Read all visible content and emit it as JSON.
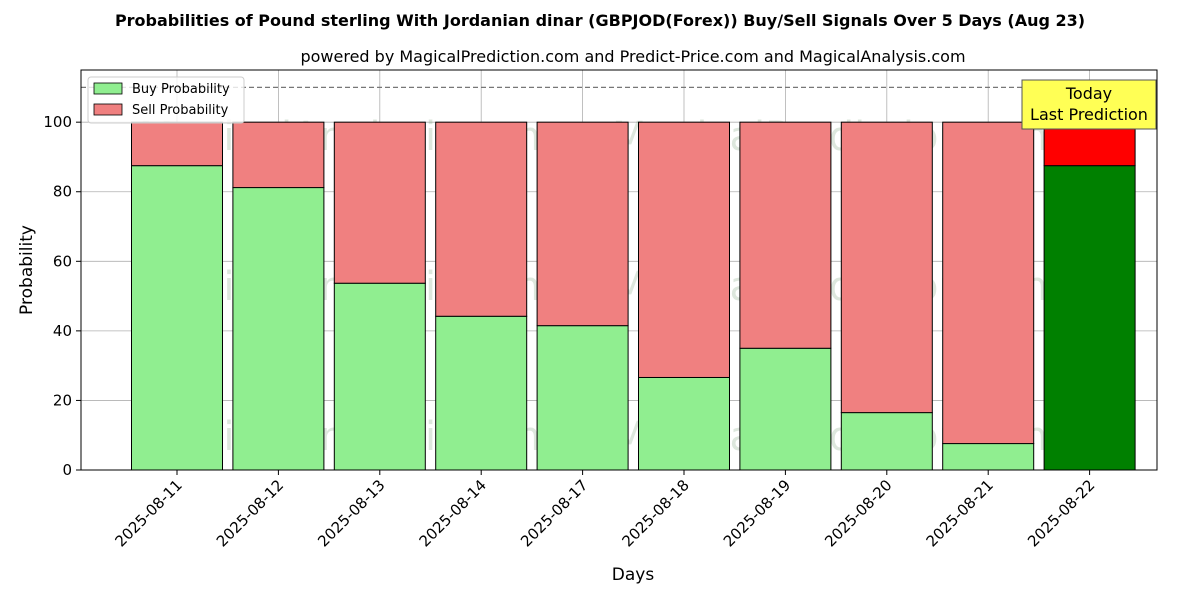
{
  "chart_data": {
    "type": "bar",
    "title": "Probabilities of Pound sterling With Jordanian dinar (GBPJOD(Forex)) Buy/Sell Signals Over 5 Days (Aug 23)",
    "subtitle": "powered by MagicalPrediction.com and Predict-Price.com and MagicalAnalysis.com",
    "xlabel": "Days",
    "ylabel": "Probability",
    "ylim": [
      0,
      115
    ],
    "yticks": [
      0,
      20,
      40,
      60,
      80,
      100
    ],
    "threshold": 110,
    "grid": true,
    "legend_placement": "top-left",
    "categories": [
      "2025-08-11",
      "2025-08-12",
      "2025-08-13",
      "2025-08-14",
      "2025-08-17",
      "2025-08-18",
      "2025-08-19",
      "2025-08-20",
      "2025-08-21",
      "2025-08-22"
    ],
    "series": [
      {
        "name": "Buy Probability",
        "values": [
          87.5,
          81.2,
          53.7,
          44.2,
          41.5,
          26.6,
          35.0,
          16.5,
          7.6,
          87.5
        ]
      },
      {
        "name": "Sell Probability",
        "values": [
          12.5,
          18.8,
          46.3,
          55.8,
          58.5,
          73.4,
          65.0,
          83.5,
          92.4,
          12.5
        ]
      }
    ],
    "colors": {
      "buy": "#90ee90",
      "sell": "#f08080",
      "buy_highlight": "#008000",
      "sell_highlight": "#ff0000",
      "annotation_bg": "#ffff55"
    },
    "annotation": {
      "line1": "Today",
      "line2": "Last Prediction"
    },
    "watermarks": [
      "MagicalAnalysis.com",
      "MagicalPrediction.com"
    ]
  }
}
